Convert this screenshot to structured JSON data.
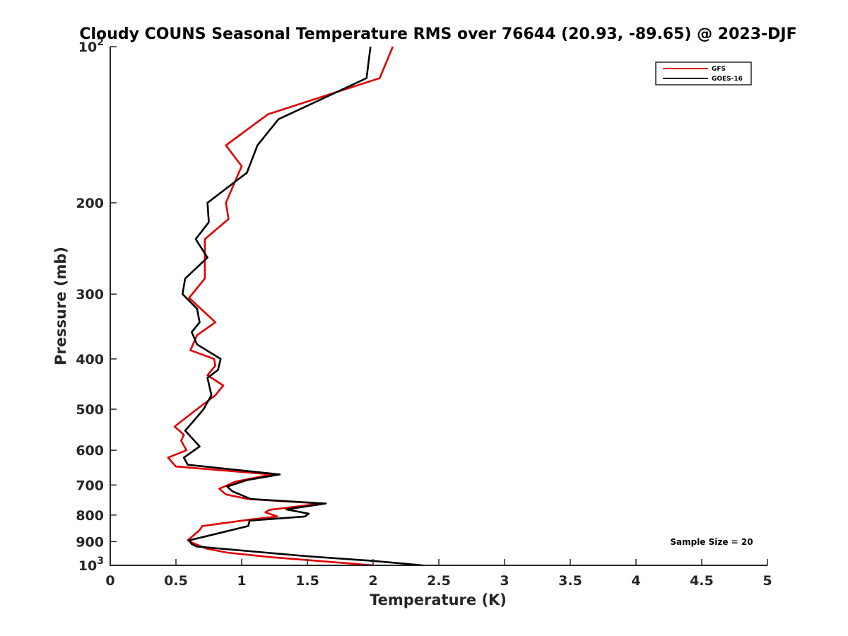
{
  "chart_data": {
    "type": "line",
    "title": "Cloudy COUNS Seasonal Temperature RMS over 76644 (20.93, -89.65) @ 2023-DJF",
    "xlabel": "Temperature (K)",
    "ylabel": "Pressure (mb)",
    "xlim": [
      0,
      5
    ],
    "ylim": [
      100,
      1000
    ],
    "y_scale": "log",
    "y_reversed": true,
    "grid": false,
    "legend_position": "top-right",
    "x_ticks": [
      0,
      0.5,
      1,
      1.5,
      2,
      2.5,
      3,
      3.5,
      4,
      4.5,
      5
    ],
    "x_tick_labels": [
      "0",
      "0.5",
      "1",
      "1.5",
      "2",
      "2.5",
      "3",
      "3.5",
      "4",
      "4.5",
      "5"
    ],
    "y_ticks": [
      {
        "value": 100,
        "base": "10",
        "exp": "2"
      },
      {
        "value": 200,
        "label": "200"
      },
      {
        "value": 300,
        "label": "300"
      },
      {
        "value": 400,
        "label": "400"
      },
      {
        "value": 500,
        "label": "500"
      },
      {
        "value": 600,
        "label": "600"
      },
      {
        "value": 700,
        "label": "700"
      },
      {
        "value": 800,
        "label": "800"
      },
      {
        "value": 900,
        "label": "900"
      },
      {
        "value": 1000,
        "base": "10",
        "exp": "3"
      }
    ],
    "annotation": "Sample Size = 20",
    "series": [
      {
        "name": "GFS",
        "color": "#e00000",
        "points": [
          [
            2.15,
            100
          ],
          [
            2.05,
            115
          ],
          [
            1.2,
            135
          ],
          [
            0.88,
            155
          ],
          [
            1.0,
            170
          ],
          [
            0.88,
            200
          ],
          [
            0.9,
            215
          ],
          [
            0.72,
            235
          ],
          [
            0.72,
            260
          ],
          [
            0.72,
            280
          ],
          [
            0.6,
            305
          ],
          [
            0.8,
            340
          ],
          [
            0.66,
            360
          ],
          [
            0.61,
            385
          ],
          [
            0.79,
            400
          ],
          [
            0.8,
            412
          ],
          [
            0.74,
            430
          ],
          [
            0.86,
            450
          ],
          [
            0.8,
            470
          ],
          [
            0.66,
            500
          ],
          [
            0.49,
            540
          ],
          [
            0.56,
            560
          ],
          [
            0.54,
            575
          ],
          [
            0.58,
            600
          ],
          [
            0.44,
            620
          ],
          [
            0.5,
            645
          ],
          [
            1.23,
            668
          ],
          [
            0.95,
            690
          ],
          [
            0.83,
            712
          ],
          [
            0.88,
            730
          ],
          [
            1.05,
            745
          ],
          [
            1.6,
            760
          ],
          [
            1.21,
            782
          ],
          [
            1.18,
            790
          ],
          [
            1.27,
            805
          ],
          [
            1.08,
            815
          ],
          [
            0.7,
            840
          ],
          [
            0.68,
            855
          ],
          [
            0.59,
            895
          ],
          [
            0.63,
            906
          ],
          [
            0.73,
            928
          ],
          [
            0.89,
            945
          ],
          [
            1.23,
            965
          ],
          [
            2.0,
            1000
          ]
        ]
      },
      {
        "name": "GOES-16",
        "color": "#000000",
        "points": [
          [
            1.98,
            100
          ],
          [
            1.95,
            115
          ],
          [
            1.28,
            138
          ],
          [
            1.12,
            155
          ],
          [
            1.04,
            175
          ],
          [
            0.74,
            200
          ],
          [
            0.75,
            218
          ],
          [
            0.65,
            235
          ],
          [
            0.74,
            255
          ],
          [
            0.57,
            280
          ],
          [
            0.55,
            300
          ],
          [
            0.66,
            320
          ],
          [
            0.68,
            340
          ],
          [
            0.62,
            355
          ],
          [
            0.66,
            375
          ],
          [
            0.84,
            400
          ],
          [
            0.82,
            420
          ],
          [
            0.74,
            435
          ],
          [
            0.77,
            470
          ],
          [
            0.71,
            500
          ],
          [
            0.64,
            525
          ],
          [
            0.57,
            550
          ],
          [
            0.68,
            590
          ],
          [
            0.56,
            620
          ],
          [
            0.59,
            640
          ],
          [
            1.29,
            668
          ],
          [
            1.04,
            685
          ],
          [
            0.89,
            705
          ],
          [
            0.93,
            720
          ],
          [
            1.07,
            745
          ],
          [
            1.64,
            760
          ],
          [
            1.34,
            780
          ],
          [
            1.51,
            795
          ],
          [
            1.48,
            805
          ],
          [
            1.06,
            820
          ],
          [
            1.05,
            840
          ],
          [
            0.72,
            880
          ],
          [
            0.6,
            895
          ],
          [
            0.62,
            910
          ],
          [
            0.66,
            920
          ],
          [
            1.49,
            960
          ],
          [
            1.99,
            980
          ],
          [
            2.38,
            1000
          ]
        ]
      }
    ]
  }
}
